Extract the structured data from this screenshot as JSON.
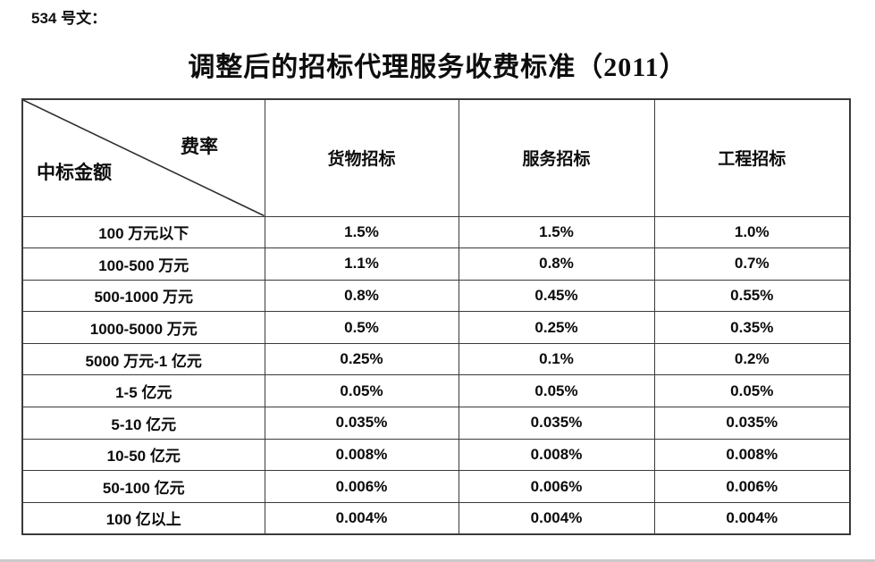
{
  "page": {
    "doc_label": "534 号文：",
    "title": "调整后的招标代理服务收费标准（2011）"
  },
  "table": {
    "corner": {
      "top_right": "费率",
      "bottom_left": "中标金额"
    },
    "columns": [
      "货物招标",
      "服务招标",
      "工程招标"
    ],
    "rows": [
      {
        "amount": "100 万元以下",
        "values": [
          "1.5%",
          "1.5%",
          "1.0%"
        ]
      },
      {
        "amount": "100-500 万元",
        "values": [
          "1.1%",
          "0.8%",
          "0.7%"
        ]
      },
      {
        "amount": "500-1000 万元",
        "values": [
          "0.8%",
          "0.45%",
          "0.55%"
        ]
      },
      {
        "amount": "1000-5000 万元",
        "values": [
          "0.5%",
          "0.25%",
          "0.35%"
        ]
      },
      {
        "amount": "5000 万元-1 亿元",
        "values": [
          "0.25%",
          "0.1%",
          "0.2%"
        ]
      },
      {
        "amount": "1-5 亿元",
        "values": [
          "0.05%",
          "0.05%",
          "0.05%"
        ]
      },
      {
        "amount": "5-10 亿元",
        "values": [
          "0.035%",
          "0.035%",
          "0.035%"
        ]
      },
      {
        "amount": "10-50 亿元",
        "values": [
          "0.008%",
          "0.008%",
          "0.008%"
        ]
      },
      {
        "amount": "50-100 亿元",
        "values": [
          "0.006%",
          "0.006%",
          "0.006%"
        ]
      },
      {
        "amount": "100 亿以上",
        "values": [
          "0.004%",
          "0.004%",
          "0.004%"
        ]
      }
    ]
  }
}
